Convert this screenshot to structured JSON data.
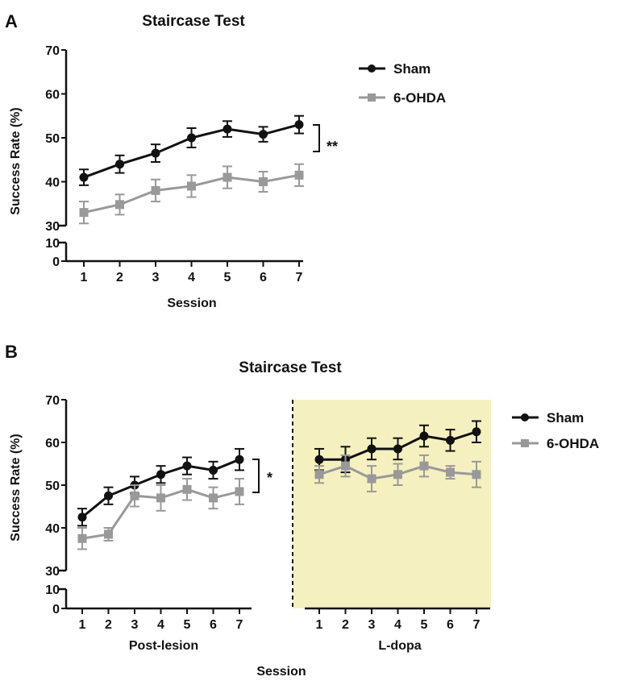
{
  "chart_data": [
    {
      "panel": "A",
      "type": "line",
      "title": "Staircase Test",
      "xlabel": "Session",
      "ylabel": "Success Rate (%)",
      "ylim": [
        0,
        70
      ],
      "y_axis_break": [
        10,
        30
      ],
      "yticks": [
        "0",
        "10",
        "30",
        "40",
        "50",
        "60",
        "70"
      ],
      "x": [
        1,
        2,
        3,
        4,
        5,
        6,
        7
      ],
      "series": [
        {
          "name": "Sham",
          "color": "#111111",
          "marker": "circle",
          "values": [
            41,
            44,
            46.5,
            50,
            52,
            50.8,
            53
          ],
          "errors": [
            1.8,
            2.0,
            2.0,
            2.2,
            1.8,
            1.7,
            2.0
          ]
        },
        {
          "name": "6-OHDA",
          "color": "#999999",
          "marker": "square",
          "values": [
            33,
            34.8,
            38,
            39,
            41,
            40,
            41.5
          ],
          "errors": [
            2.5,
            2.3,
            2.5,
            2.5,
            2.5,
            2.3,
            2.5
          ]
        }
      ],
      "significance": "**",
      "legend_position": "top-right"
    },
    {
      "panel": "B",
      "type": "line",
      "title": "Staircase Test",
      "xlabel": "Session",
      "ylabel": "Success Rate (%)",
      "ylim": [
        0,
        70
      ],
      "y_axis_break": [
        10,
        30
      ],
      "yticks": [
        "0",
        "10",
        "30",
        "40",
        "50",
        "60",
        "70"
      ],
      "groups": [
        {
          "label": "Post-lesion",
          "x": [
            1,
            2,
            3,
            4,
            5,
            6,
            7
          ],
          "series": [
            {
              "name": "Sham",
              "values": [
                42.5,
                47.5,
                50,
                52.5,
                54.5,
                53.5,
                56
              ],
              "errors": [
                2,
                2,
                2,
                2,
                2,
                2,
                2.5
              ]
            },
            {
              "name": "6-OHDA",
              "values": [
                37.5,
                38.5,
                47.5,
                47,
                49,
                47,
                48.5
              ],
              "errors": [
                2.5,
                1.5,
                2.5,
                3,
                2.5,
                2.5,
                3
              ]
            }
          ],
          "significance": "*"
        },
        {
          "label": "L-dopa",
          "x": [
            1,
            2,
            3,
            4,
            5,
            6,
            7
          ],
          "shaded": true,
          "series": [
            {
              "name": "Sham",
              "values": [
                56,
                56,
                58.5,
                58.5,
                61.5,
                60.5,
                62.5
              ],
              "errors": [
                2.5,
                3,
                2.5,
                2.5,
                2.5,
                2.5,
                2.5
              ]
            },
            {
              "name": "6-OHDA",
              "values": [
                52.5,
                54.5,
                51.5,
                52.5,
                54.5,
                53,
                52.5
              ],
              "errors": [
                2,
                2.5,
                3,
                2.5,
                2.5,
                1.5,
                3
              ]
            }
          ]
        }
      ],
      "series_styles": [
        {
          "name": "Sham",
          "color": "#111111",
          "marker": "circle"
        },
        {
          "name": "6-OHDA",
          "color": "#999999",
          "marker": "square"
        }
      ],
      "shade_color": "#f5f0c0",
      "legend_position": "top-right"
    }
  ]
}
